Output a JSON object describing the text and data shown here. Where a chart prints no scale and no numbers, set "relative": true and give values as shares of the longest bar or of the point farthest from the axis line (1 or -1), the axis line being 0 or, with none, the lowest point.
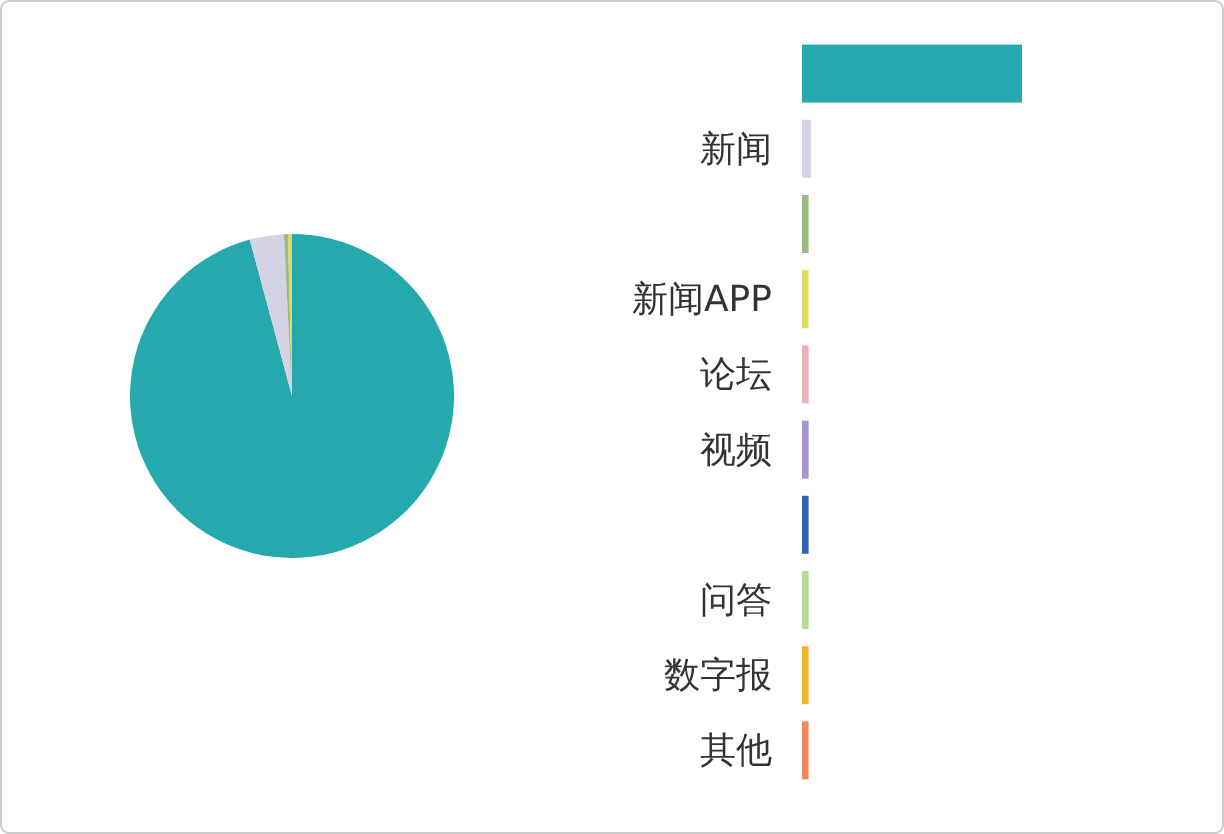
{
  "chart_data": [
    {
      "type": "pie",
      "categories": [
        null,
        null,
        null,
        null
      ],
      "values": [
        95.8,
        3.4,
        0.4,
        0.4
      ],
      "colors": [
        "#26a9ae",
        "#d3d3e3",
        "#9bb983",
        "#d9dc5c"
      ]
    },
    {
      "type": "bar",
      "orientation": "horizontal",
      "relative": true,
      "categories": [
        null,
        "新闻",
        null,
        "新闻APP",
        "论坛",
        "视频",
        null,
        "问答",
        "数字报",
        "其他"
      ],
      "values": [
        1,
        0.04,
        0.03,
        0.03,
        0.03,
        0.03,
        0.03,
        0.03,
        0.03,
        0.03
      ],
      "colors": [
        "#26a9ae",
        "#d3d3e3",
        "#9bb983",
        "#d9dc5c",
        "#e8b4b8",
        "#a995c9",
        "#2f63ad",
        "#b8d99b",
        "#efb52d",
        "#f08a5d"
      ]
    }
  ]
}
